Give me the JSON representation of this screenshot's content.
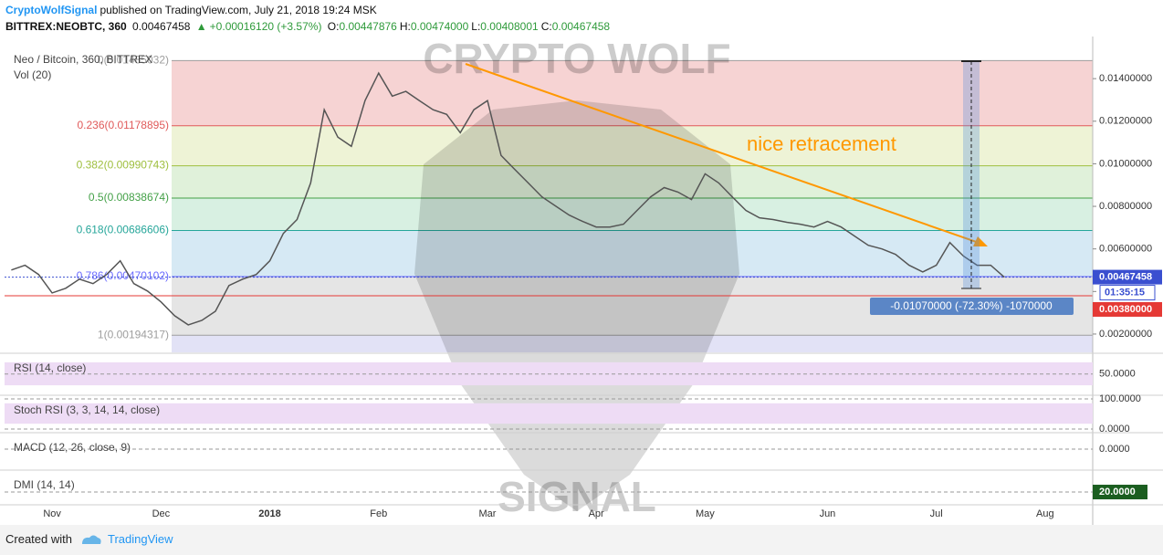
{
  "header": {
    "author": "CryptoWolfSignal",
    "published": "published on TradingView.com, July 21, 2018 19:24 MSK",
    "symbol": "BITTREX:NEOBTC, 360",
    "last": "0.00467458",
    "change": "+0.00016120 (+3.57%)",
    "ohlc": [
      {
        "key": "O:",
        "value": "0.00447876"
      },
      {
        "key": "H:",
        "value": "0.00474000"
      },
      {
        "key": "L:",
        "value": "0.00408001"
      },
      {
        "key": "C:",
        "value": "0.00467458"
      }
    ]
  },
  "footer": {
    "created": "Created with",
    "brand": "TradingView"
  },
  "chart_data": {
    "type": "line",
    "legend": [
      "Neo / Bitcoin, 360, BITTREX",
      "Vol (20)"
    ],
    "watermark": [
      "CRYPTO WOLF",
      "SIGNAL"
    ],
    "categories": [
      null,
      null,
      null,
      "Nov",
      null,
      null,
      null,
      null,
      null,
      null,
      null,
      "Dec",
      null,
      null,
      null,
      null,
      null,
      null,
      null,
      "2018",
      null,
      null,
      null,
      null,
      null,
      null,
      null,
      "Feb",
      null,
      null,
      null,
      null,
      null,
      null,
      null,
      "Mar",
      null,
      null,
      null,
      null,
      null,
      null,
      null,
      "Apr",
      null,
      null,
      null,
      null,
      null,
      null,
      null,
      "May",
      null,
      null,
      null,
      null,
      null,
      null,
      null,
      null,
      "Jun",
      null,
      null,
      null,
      null,
      null,
      null,
      null,
      "Jul",
      null,
      null,
      null,
      null,
      null,
      null,
      null,
      "Aug",
      null,
      null,
      null
    ],
    "series": [
      {
        "name": "Neo / Bitcoin",
        "color": "#555555",
        "values": [
          0.00501,
          0.00523,
          0.0048,
          0.00393,
          0.00415,
          0.00458,
          0.00437,
          0.0048,
          0.00544,
          0.00437,
          0.00402,
          0.00351,
          0.00286,
          0.00243,
          0.00264,
          0.00307,
          0.00428,
          0.00458,
          0.0048,
          0.00544,
          0.00673,
          0.00738,
          0.0091,
          0.01254,
          0.01125,
          0.01082,
          0.01297,
          0.01426,
          0.01318,
          0.0134,
          0.01297,
          0.01254,
          0.01232,
          0.01146,
          0.01254,
          0.01297,
          0.01039,
          0.00974,
          0.0091,
          0.00845,
          0.00802,
          0.00759,
          0.00729,
          0.00703,
          0.00703,
          0.00716,
          0.00781,
          0.00845,
          0.00888,
          0.00867,
          0.00832,
          0.00953,
          0.0091,
          0.00845,
          0.00781,
          0.00746,
          0.00738,
          0.00725,
          0.00716,
          0.00703,
          0.00729,
          0.00703,
          0.0066,
          0.00617,
          0.006,
          0.00574,
          0.00523,
          0.00492,
          0.00523,
          0.0063,
          0.00566,
          0.00523,
          0.00523,
          0.00467,
          null,
          null,
          null,
          null,
          null,
          null
        ]
      }
    ],
    "ylim": [
      0.00114,
      0.01525
    ],
    "yticks": [
      {
        "value": 0.002,
        "label": "0.00200000"
      },
      {
        "value": 0.004,
        "label": "0.00400000"
      },
      {
        "value": 0.006,
        "label": "0.00600000"
      },
      {
        "value": 0.008,
        "label": "0.00800000"
      },
      {
        "value": 0.01,
        "label": "0.01000000"
      },
      {
        "value": 0.012,
        "label": "0.01200000"
      },
      {
        "value": 0.014,
        "label": "0.01400000"
      }
    ],
    "fib_levels": [
      {
        "value": 0.01485032,
        "label": "0(0.01485032)",
        "color": "#9e9e9e",
        "fill": "#f6d3d3"
      },
      {
        "value": 0.01178895,
        "label": "0.236(0.01178895)",
        "color": "#e05a5a",
        "fill": "#eef3d6"
      },
      {
        "value": 0.00990743,
        "label": "0.382(0.00990743)",
        "color": "#9fbf3f",
        "fill": "#e0f1da"
      },
      {
        "value": 0.00838674,
        "label": "0.5(0.00838674)",
        "color": "#43a047",
        "fill": "#d8f0e2"
      },
      {
        "value": 0.00686606,
        "label": "0.618(0.00686606)",
        "color": "#26a69a",
        "fill": "#d6e9f4"
      },
      {
        "value": 0.00470102,
        "label": "0.786(0.00470102)",
        "color": "#6a6aff",
        "fill": "#e5e5e5"
      },
      {
        "value": 0.00194317,
        "label": "1(0.00194317)",
        "color": "#9e9e9e",
        "fill": "#e2e2f6"
      }
    ],
    "last_price": {
      "value": 0.00467458,
      "label": "0.00467458",
      "color": "#3a4fd0"
    },
    "countdown": "01:35:15",
    "support": {
      "value": 0.0038,
      "label": "0.00380000",
      "color": "#e53935"
    },
    "annotation": {
      "text": "nice retracement",
      "color": "#ff9800"
    },
    "measure": {
      "label": "-0.01070000 (-72.30%) -1070000",
      "color": "#5b86c6"
    },
    "indicators": [
      {
        "label": "RSI (14, close)",
        "ylim": [
          13,
          88
        ],
        "yticks": [
          {
            "value": 50,
            "label": "50.0000"
          }
        ],
        "fill": "#eedcf5"
      },
      {
        "label": "Stoch RSI (3, 3, 14, 14, close)",
        "ylim": [
          -9,
          112
        ],
        "yticks": [
          {
            "value": 100,
            "label": "100.0000"
          },
          {
            "value": 0,
            "label": "0.0000"
          }
        ],
        "fill": "#eedcf5"
      },
      {
        "label": "MACD (12, 26, close, 9)",
        "ylim": [
          -0.0011,
          0.0009
        ],
        "yticks": [
          {
            "value": 0,
            "label": "0.0000"
          }
        ]
      },
      {
        "label": "DMI (14, 14)",
        "ylim": [
          0,
          57
        ],
        "yticks": [
          {
            "value": 20,
            "label": "20.0000"
          }
        ],
        "tag_color": "#1b5e20"
      }
    ]
  }
}
